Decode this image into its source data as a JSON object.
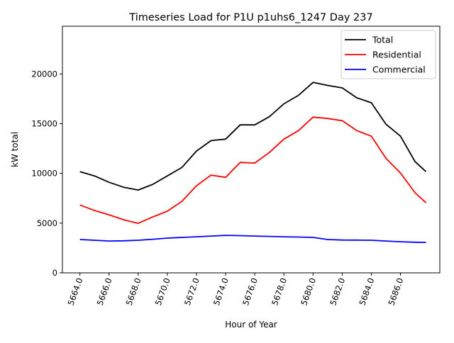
{
  "chart_data": {
    "type": "line",
    "title": "Timeseries Load for P1U p1uhs6_1247  Day 237",
    "xlabel": "Hour of Year",
    "ylabel": "kW total",
    "xlim": [
      5662.8,
      5688.7
    ],
    "ylim": [
      0,
      24800
    ],
    "xticks": [
      5664,
      5666,
      5668,
      5670,
      5672,
      5674,
      5676,
      5678,
      5680,
      5682,
      5684,
      5686
    ],
    "xtick_labels": [
      "5664.0",
      "5666.0",
      "5668.0",
      "5670.0",
      "5672.0",
      "5674.0",
      "5676.0",
      "5678.0",
      "5680.0",
      "5682.0",
      "5684.0",
      "5686.0"
    ],
    "yticks": [
      0,
      5000,
      10000,
      15000,
      20000
    ],
    "ytick_labels": [
      "0",
      "5000",
      "10000",
      "15000",
      "20000"
    ],
    "grid": false,
    "legend_position": "top-right",
    "x": [
      5664,
      5665,
      5666,
      5667,
      5668,
      5669,
      5670,
      5671,
      5672,
      5673,
      5674,
      5675,
      5676,
      5677,
      5678,
      5679,
      5680,
      5681,
      5682,
      5683,
      5684,
      5685,
      5686,
      5687,
      5687.75
    ],
    "series": [
      {
        "name": "Total",
        "color": "#000000",
        "values": [
          10180,
          9750,
          9110,
          8610,
          8330,
          8900,
          9750,
          10600,
          12250,
          13300,
          13450,
          14880,
          14880,
          15700,
          17000,
          17850,
          19150,
          18850,
          18600,
          17600,
          17100,
          14950,
          13750,
          11180,
          10180
        ]
      },
      {
        "name": "Residential",
        "color": "#ff0000",
        "values": [
          6830,
          6270,
          5840,
          5340,
          4980,
          5620,
          6200,
          7190,
          8760,
          9830,
          9610,
          11100,
          11040,
          12100,
          13450,
          14300,
          15660,
          15520,
          15300,
          14300,
          13740,
          11530,
          10040,
          8050,
          7050
        ]
      },
      {
        "name": "Commercial",
        "color": "#0000ff",
        "values": [
          3350,
          3280,
          3200,
          3220,
          3280,
          3380,
          3490,
          3560,
          3630,
          3700,
          3770,
          3740,
          3700,
          3660,
          3630,
          3600,
          3560,
          3350,
          3300,
          3290,
          3280,
          3200,
          3130,
          3080,
          3060
        ]
      }
    ]
  }
}
